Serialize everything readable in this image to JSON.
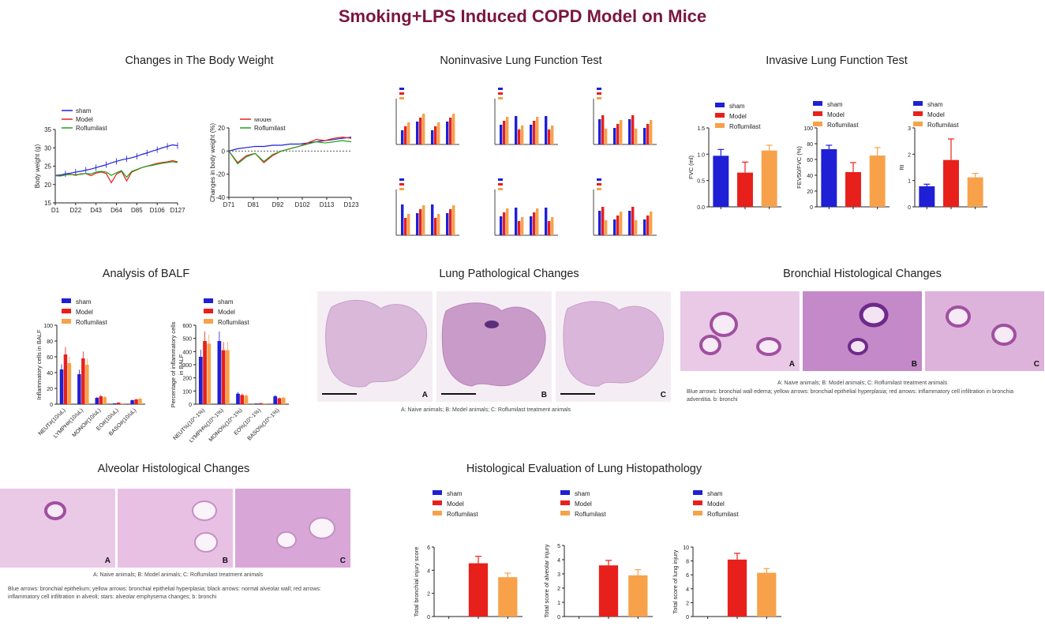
{
  "page_title": "Smoking+LPS Induced COPD Model on Mice",
  "sections": {
    "body_weight": "Changes in The Body Weight",
    "noninvasive": "Noninvasive Lung Function Test",
    "invasive": "Invasive Lung Function Test",
    "balf": "Analysis of BALF",
    "lung_path": "Lung Pathological Changes",
    "bronchial": "Bronchial Histological Changes",
    "alveolar": "Alveolar Histological Changes",
    "hist_eval": "Histological Evaluation of Lung Histopathology"
  },
  "colors": {
    "sham": "#1f1fd6",
    "model": "#e8201c",
    "roflu": "#f7a24a",
    "green": "#1da21d",
    "title": "#7a1640"
  },
  "captions": {
    "lung_path": "A: Naive animals; B: Model animals; C: Roflumilast treatment animals",
    "bronchial_1": "A: Naive animals; B: Model animals; C: Roflumilast treatment animals",
    "bronchial_2": "Blue arrows: bronchial wall edema; yellow arrows: bronchial epithelial hyperplasia; red arrows: inflammatory cell infiltration in bronchia",
    "bronchial_3": "adventitia. b: bronchi",
    "alveolar_1": "A: Naive animals; B: Model animals; C: Roflumilast treatment animals",
    "alveolar_2": "Blue arrows: bronchial epithelium; yellow arrows: bronchial epithelial hyperplasia; black arrows: normal alveolar wall; red arrows:",
    "alveolar_3": "inflammatory cell infiltration in alveoli; stars: alveolar emphysema changes; b: bronchi"
  },
  "panel_labels": [
    "A",
    "B",
    "C"
  ],
  "chart_data": [
    {
      "id": "bw1",
      "type": "line",
      "legend": [
        "sham",
        "Model",
        "Roflumilast"
      ],
      "ylabel": "Body weight (g)",
      "ylim": [
        15,
        35
      ],
      "yticks": [
        "15",
        "20",
        "25",
        "30",
        "35"
      ],
      "xticks": [
        "D1",
        "D22",
        "D43",
        "D64",
        "D85",
        "D106",
        "D127"
      ],
      "series": [
        {
          "name": "sham",
          "values": [
            22.5,
            22.6,
            22.9,
            23.1,
            23.4,
            23.6,
            23.9,
            24.2,
            24.6,
            25.0,
            25.4,
            25.9,
            26.3,
            26.7,
            27.0,
            27.3,
            27.7,
            28.2,
            28.6,
            29.1,
            29.5,
            30.0,
            30.4,
            30.8,
            30.6
          ]
        },
        {
          "name": "Model",
          "values": [
            22.5,
            22.4,
            22.6,
            22.8,
            22.5,
            22.9,
            23.0,
            22.4,
            23.1,
            23.4,
            23.0,
            20.5,
            22.8,
            23.6,
            21.0,
            23.4,
            24.0,
            24.6,
            25.0,
            25.4,
            25.8,
            26.0,
            26.2,
            26.5,
            26.2
          ]
        },
        {
          "name": "Roflumilast",
          "values": [
            22.4,
            22.3,
            22.6,
            22.7,
            22.7,
            22.8,
            23.0,
            22.9,
            23.4,
            23.6,
            23.4,
            22.5,
            23.2,
            23.8,
            22.0,
            23.6,
            24.1,
            24.6,
            25.0,
            25.2,
            25.5,
            25.8,
            26.0,
            26.2,
            26.0
          ]
        }
      ]
    },
    {
      "id": "bw2",
      "type": "line",
      "legend": [
        "sham",
        "Model",
        "Roflumilast"
      ],
      "ylabel": "Changes in body weight (%)",
      "ylim": [
        -40,
        20
      ],
      "yticks": [
        "-40",
        "-20",
        "0",
        "20"
      ],
      "xticks": [
        "D71",
        "D81",
        "D92",
        "D102",
        "D113",
        "D123"
      ],
      "series": [
        {
          "name": "sham",
          "values": [
            0,
            2,
            3,
            4,
            4,
            5,
            5,
            6,
            6,
            7,
            8,
            9,
            10,
            11,
            12
          ]
        },
        {
          "name": "Model",
          "values": [
            0,
            -10,
            -4,
            -2,
            -10,
            -4,
            0,
            2,
            4,
            7,
            10,
            9,
            11,
            12,
            11
          ]
        },
        {
          "name": "Roflumilast",
          "values": [
            0,
            -11,
            -5,
            -2,
            -9,
            -3,
            0,
            2,
            4,
            6,
            8,
            7,
            8,
            9,
            8
          ]
        }
      ]
    },
    {
      "id": "inv_fvc",
      "type": "bar",
      "legend": [
        "sham",
        "Model",
        "Roflumilast"
      ],
      "ylabel": "FVC (ml)",
      "ylim": [
        0,
        1.5
      ],
      "yticks": [
        "0.0",
        "0.5",
        "1.0",
        "1.5"
      ],
      "values": [
        0.97,
        0.65,
        1.07
      ],
      "errors": [
        0.12,
        0.2,
        0.1
      ]
    },
    {
      "id": "inv_fev",
      "type": "bar",
      "legend": [
        "sham",
        "Model",
        "Roflumilast"
      ],
      "ylabel": "FEV50/FVC (%)",
      "ylim": [
        0,
        100
      ],
      "yticks": [
        "0",
        "20",
        "40",
        "60",
        "80",
        "100"
      ],
      "values": [
        73,
        44,
        65
      ],
      "errors": [
        5,
        12,
        10
      ]
    },
    {
      "id": "inv_ri",
      "type": "bar",
      "legend": [
        "sham",
        "Model",
        "Roflumilast"
      ],
      "ylabel": "RI",
      "ylim": [
        0,
        3
      ],
      "yticks": [
        "0",
        "1",
        "2",
        "3"
      ],
      "values": [
        0.78,
        1.78,
        1.12
      ],
      "errors": [
        0.08,
        0.8,
        0.15
      ]
    },
    {
      "id": "balf_count",
      "type": "bar",
      "legend": [
        "sham",
        "Model",
        "Roflumilast"
      ],
      "ylabel": "Inflammatory cells in BALF",
      "ylim": [
        0,
        100
      ],
      "yticks": [
        "0",
        "20",
        "40",
        "60",
        "80",
        "100"
      ],
      "categories": [
        "NEUT#(10/uL)",
        "LYMPH#(10/uL)",
        "MONO#(10/uL)",
        "EO#(10/uL)",
        "BASO#(10/uL)"
      ],
      "series": [
        {
          "name": "sham",
          "values": [
            44,
            38,
            8,
            1,
            5
          ]
        },
        {
          "name": "Model",
          "values": [
            63,
            58,
            10,
            2,
            6
          ]
        },
        {
          "name": "Roflumilast",
          "values": [
            52,
            50,
            9,
            1,
            7
          ]
        }
      ]
    },
    {
      "id": "balf_pct",
      "type": "bar",
      "legend": [
        "sham",
        "Model",
        "Roflumilast"
      ],
      "ylabel": "Percentage of inflammatory cells in BALF",
      "ylim": [
        0,
        600
      ],
      "yticks": [
        "0",
        "100",
        "200",
        "300",
        "400",
        "500",
        "600"
      ],
      "categories": [
        "NEUT%(10^-1%)",
        "LYMPH%(10^-1%)",
        "MONO%(10^-1%)",
        "EO%(10^-1%)",
        "BASO%(10^-1%)"
      ],
      "series": [
        {
          "name": "sham",
          "values": [
            360,
            480,
            80,
            5,
            60
          ]
        },
        {
          "name": "Model",
          "values": [
            480,
            410,
            70,
            8,
            45
          ]
        },
        {
          "name": "Roflumilast",
          "values": [
            460,
            410,
            65,
            6,
            50
          ]
        }
      ]
    },
    {
      "id": "hist_bronch",
      "type": "bar",
      "legend": [
        "sham",
        "Model",
        "Roflumilast"
      ],
      "ylabel": "Total bronchial injury score",
      "ylim": [
        0,
        6
      ],
      "yticks": [
        "0",
        "2",
        "4",
        "6"
      ],
      "values": [
        0,
        4.6,
        3.4
      ],
      "errors": [
        0,
        0.6,
        0.35
      ]
    },
    {
      "id": "hist_alv",
      "type": "bar",
      "legend": [
        "sham",
        "Model",
        "Roflumilast"
      ],
      "ylabel": "Total score of alveolar injury",
      "ylim": [
        0,
        5
      ],
      "yticks": [
        "0",
        "1",
        "2",
        "3",
        "4",
        "5"
      ],
      "values": [
        0,
        3.6,
        2.9
      ],
      "errors": [
        0,
        0.35,
        0.4
      ]
    },
    {
      "id": "hist_lung",
      "type": "bar",
      "legend": [
        "sham",
        "Model",
        "Roflumilast"
      ],
      "ylabel": "Total score of lung injury",
      "ylim": [
        0,
        10
      ],
      "yticks": [
        "0",
        "2",
        "4",
        "6",
        "8",
        "10"
      ],
      "values": [
        0,
        8.2,
        6.3
      ],
      "errors": [
        0,
        0.9,
        0.6
      ]
    }
  ]
}
